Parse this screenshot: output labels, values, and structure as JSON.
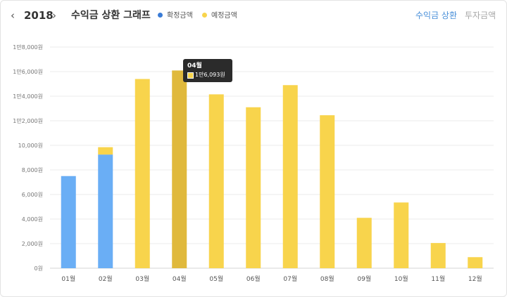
{
  "header": {
    "prev_icon": "‹",
    "next_icon": "›",
    "year": "2018",
    "title": "수익금 상환 그래프",
    "legend": [
      {
        "label": "확정금액",
        "color": "#3a7cd6"
      },
      {
        "label": "예정금액",
        "color": "#f8d44c"
      }
    ],
    "tabs": [
      {
        "label": "수익금 상환",
        "active": true
      },
      {
        "label": "투자금액",
        "active": false
      }
    ]
  },
  "colors": {
    "confirmed": "#6aaef5",
    "expected": "#f8d44c",
    "highlight": "#e0b93c",
    "grid": "#ebebeb"
  },
  "tooltip": {
    "title": "04월",
    "value": "1만6,093원"
  },
  "chart_data": {
    "type": "bar",
    "stacked": true,
    "categories": [
      "01월",
      "02월",
      "03월",
      "04월",
      "05월",
      "06월",
      "07월",
      "08월",
      "09월",
      "10월",
      "11월",
      "12월"
    ],
    "series": [
      {
        "name": "확정금액",
        "values": [
          7500,
          9250,
          0,
          0,
          0,
          0,
          0,
          0,
          0,
          0,
          0,
          0
        ]
      },
      {
        "name": "예정금액",
        "values": [
          0,
          600,
          15400,
          16093,
          14150,
          13100,
          14900,
          12450,
          4100,
          5350,
          2050,
          900
        ]
      }
    ],
    "yticks": [
      "0원",
      "2,000원",
      "4,000원",
      "6,000원",
      "8,000원",
      "10,000원",
      "1만2,000원",
      "1만4,000원",
      "1만6,000원",
      "1만8,000원"
    ],
    "ylim": [
      0,
      18000
    ],
    "highlight_index": 3,
    "grid": true
  }
}
